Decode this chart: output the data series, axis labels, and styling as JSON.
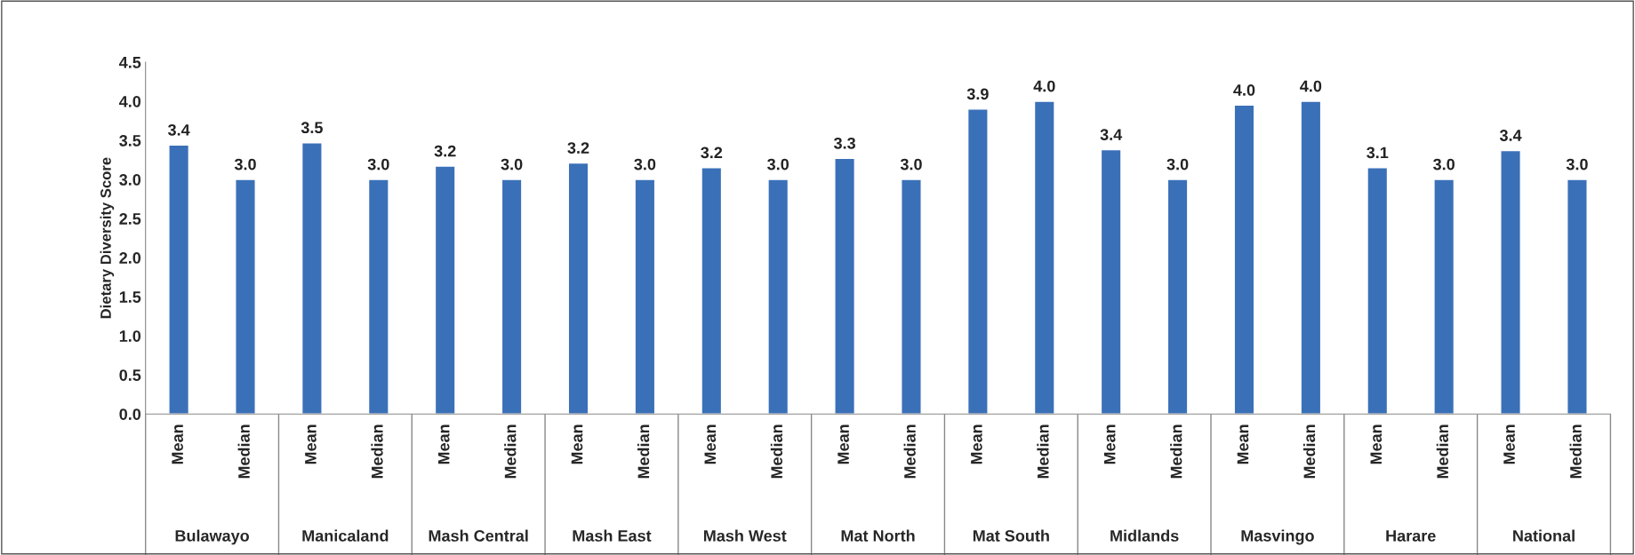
{
  "chart_data": {
    "type": "bar",
    "ylabel": "Dietary Diversity Score",
    "categories": [
      "Mean",
      "Median",
      "Mean",
      "Median",
      "Mean",
      "Median",
      "Mean",
      "Median",
      "Mean",
      "Median",
      "Mean",
      "Median",
      "Mean",
      "Median",
      "Mean",
      "Median",
      "Mean",
      "Median",
      "Mean",
      "Median",
      "Mean",
      "Median"
    ],
    "values": [
      3.44,
      3.0,
      3.47,
      3.0,
      3.17,
      3.0,
      3.21,
      3.0,
      3.15,
      3.0,
      3.27,
      3.0,
      3.9,
      4.0,
      3.38,
      3.0,
      3.95,
      4.0,
      3.15,
      3.0,
      3.37,
      3.0
    ],
    "value_labels": [
      "3.4",
      "3.0",
      "3.5",
      "3.0",
      "3.2",
      "3.0",
      "3.2",
      "3.0",
      "3.2",
      "3.0",
      "3.3",
      "3.0",
      "3.9",
      "4.0",
      "3.4",
      "3.0",
      "4.0",
      "4.0",
      "3.1",
      "3.0",
      "3.4",
      "3.0"
    ],
    "color": "#3a70b8",
    "annotations": [
      "Bulawayo",
      "Manicaland",
      "Mash Central",
      "Mash East",
      "Mash West",
      "Mat North",
      "Mat South",
      "Midlands",
      "Masvingo",
      "Harare",
      "National"
    ],
    "ylim": [
      0,
      4.5
    ],
    "yticks": [
      {
        "value": 0,
        "label": "0.0"
      },
      {
        "value": 0.5,
        "label": "0.5"
      },
      {
        "value": 1,
        "label": "1.0"
      },
      {
        "value": 1.5,
        "label": "1.5"
      },
      {
        "value": 2,
        "label": "2.0"
      },
      {
        "value": 2.5,
        "label": "2.5"
      },
      {
        "value": 3,
        "label": "3.0"
      },
      {
        "value": 3.5,
        "label": "3.5"
      },
      {
        "value": 4,
        "label": "4.0"
      },
      {
        "value": 4.5,
        "label": "4.5"
      }
    ],
    "grid": false
  }
}
